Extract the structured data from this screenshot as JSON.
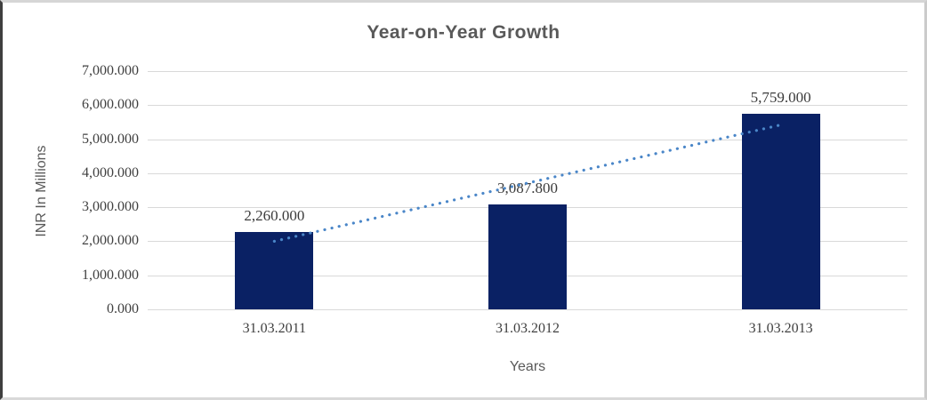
{
  "chart_data": {
    "type": "bar",
    "title": "Year-on-Year Growth",
    "categories": [
      "31.03.2011",
      "31.03.2012",
      "31.03.2013"
    ],
    "values": [
      2260.0,
      3087.8,
      5759.0
    ],
    "data_labels": [
      "2,260.000",
      "3,087.800",
      "5,759.000"
    ],
    "xlabel": "Years",
    "ylabel": "INR In Millions",
    "ylim": [
      0,
      7000
    ],
    "ytick_interval": 1000,
    "ytick_labels": [
      "0.000",
      "1,000.000",
      "2,000.000",
      "3,000.000",
      "4,000.000",
      "5,000.000",
      "6,000.000",
      "7,000.000"
    ],
    "grid": true,
    "legend": false,
    "bar_color": "#0a2164",
    "trendline": {
      "type": "linear",
      "style": "dotted",
      "color": "#4a86c8",
      "start_value": 2000,
      "end_value": 5420
    },
    "style_colors": {
      "title_text": "#595959",
      "axis_title_text": "#595959",
      "tick_text": "#404040",
      "gridline": "#d9d9d9"
    }
  }
}
